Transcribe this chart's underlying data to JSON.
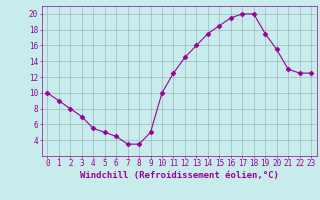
{
  "x": [
    0,
    1,
    2,
    3,
    4,
    5,
    6,
    7,
    8,
    9,
    10,
    11,
    12,
    13,
    14,
    15,
    16,
    17,
    18,
    19,
    20,
    21,
    22,
    23
  ],
  "y": [
    10,
    9,
    8,
    7,
    5.5,
    5,
    4.5,
    3.5,
    3.5,
    5,
    10,
    12.5,
    14.5,
    16,
    17.5,
    18.5,
    19.5,
    20,
    20,
    17.5,
    15.5,
    13,
    12.5,
    12.5
  ],
  "line_color": "#990099",
  "marker": "D",
  "marker_size": 2.5,
  "bg_color": "#c8ecec",
  "grid_color": "#99bbbb",
  "xlabel": "Windchill (Refroidissement éolien,°C)",
  "xlabel_fontsize": 6.5,
  "tick_color": "#990099",
  "tick_labelsize": 5.5,
  "xlim": [
    -0.5,
    23.5
  ],
  "ylim": [
    2,
    21
  ],
  "yticks": [
    4,
    6,
    8,
    10,
    12,
    14,
    16,
    18,
    20
  ],
  "xticks": [
    0,
    1,
    2,
    3,
    4,
    5,
    6,
    7,
    8,
    9,
    10,
    11,
    12,
    13,
    14,
    15,
    16,
    17,
    18,
    19,
    20,
    21,
    22,
    23
  ]
}
